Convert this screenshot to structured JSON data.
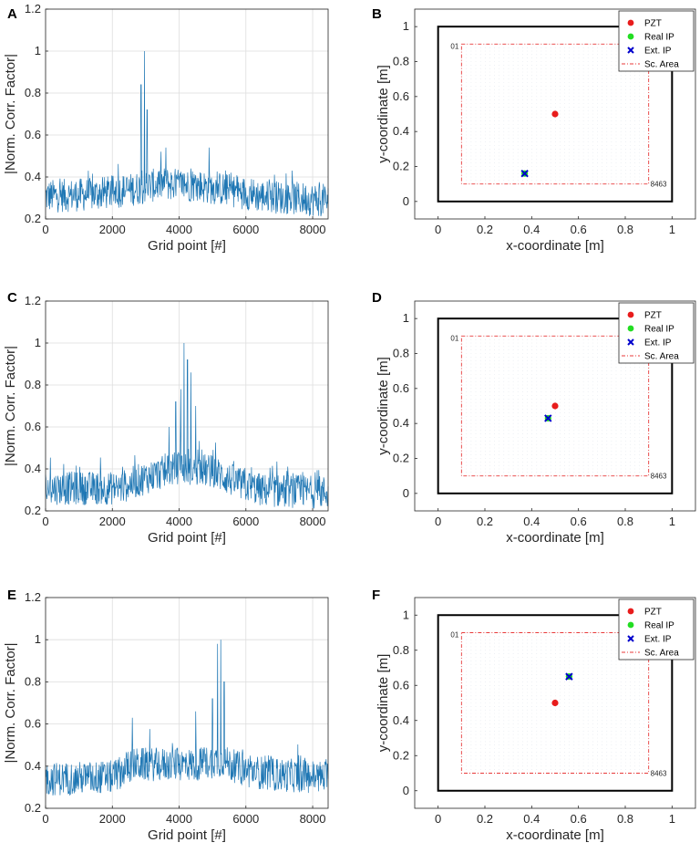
{
  "chart_data": [
    {
      "panel": "A",
      "type": "line",
      "xlabel": "Grid point [#]",
      "ylabel": "|Norm. Corr. Factor|",
      "xlim": [
        0,
        8463
      ],
      "ylim": [
        0.2,
        1.2
      ],
      "xticks": [
        0,
        2000,
        4000,
        6000,
        8000
      ],
      "xtick_labels": [
        "0",
        "2000",
        "4000",
        "6000",
        "8000"
      ],
      "yticks": [
        0.2,
        0.4,
        0.6,
        0.8,
        1,
        1.2
      ],
      "ytick_labels": [
        "0.2",
        "0.4",
        "0.6",
        "0.8",
        "1",
        "1.2"
      ],
      "grid": true,
      "color": "#1f77b4",
      "profile": [
        [
          0,
          0.3
        ],
        [
          1500,
          0.31
        ],
        [
          2500,
          0.33
        ],
        [
          3500,
          0.36
        ],
        [
          4500,
          0.35
        ],
        [
          5500,
          0.33
        ],
        [
          6500,
          0.3
        ],
        [
          8463,
          0.28
        ]
      ],
      "peaks": [
        [
          2860,
          0.84
        ],
        [
          2960,
          1.0
        ],
        [
          3040,
          0.72
        ],
        [
          3600,
          0.54
        ],
        [
          4900,
          0.54
        ]
      ]
    },
    {
      "panel": "B",
      "type": "scatter",
      "xlabel": "x-coordinate [m]",
      "ylabel": "y-coordinate [m]",
      "xlim": [
        -0.1,
        1.1
      ],
      "ylim": [
        -0.1,
        1.1
      ],
      "xticks": [
        0,
        0.2,
        0.4,
        0.6,
        0.8,
        1
      ],
      "xtick_labels": [
        "0",
        "0.2",
        "0.4",
        "0.6",
        "0.8",
        "1"
      ],
      "yticks": [
        0,
        0.2,
        0.4,
        0.6,
        0.8,
        1
      ],
      "ytick_labels": [
        "0",
        "0.2",
        "0.4",
        "0.6",
        "0.8",
        "1"
      ],
      "plate": [
        0,
        1,
        0,
        1
      ],
      "scan_area": [
        0.1,
        0.9,
        0.1,
        0.9
      ],
      "corner_labels": [
        "01",
        "8463"
      ],
      "pzt": [
        0.5,
        0.5
      ],
      "real_ip": [
        0.37,
        0.16
      ],
      "ext_ip": [
        0.37,
        0.16
      ],
      "legend": [
        "PZT",
        "Real IP",
        "Ext. IP",
        "Sc. Area"
      ],
      "legend_location": "top-right"
    },
    {
      "panel": "C",
      "type": "line",
      "xlabel": "Grid point [#]",
      "ylabel": "|Norm. Corr. Factor|",
      "xlim": [
        0,
        8463
      ],
      "ylim": [
        0.2,
        1.2
      ],
      "xticks": [
        0,
        2000,
        4000,
        6000,
        8000
      ],
      "xtick_labels": [
        "0",
        "2000",
        "4000",
        "6000",
        "8000"
      ],
      "yticks": [
        0.2,
        0.4,
        0.6,
        0.8,
        1,
        1.2
      ],
      "ytick_labels": [
        "0.2",
        "0.4",
        "0.6",
        "0.8",
        "1",
        "1.2"
      ],
      "grid": true,
      "color": "#1f77b4",
      "profile": [
        [
          0,
          0.3
        ],
        [
          2200,
          0.3
        ],
        [
          3000,
          0.35
        ],
        [
          4000,
          0.4
        ],
        [
          5000,
          0.38
        ],
        [
          5800,
          0.32
        ],
        [
          6500,
          0.29
        ],
        [
          8463,
          0.28
        ]
      ],
      "peaks": [
        [
          3900,
          0.72
        ],
        [
          4050,
          0.78
        ],
        [
          4150,
          1.0
        ],
        [
          4250,
          0.92
        ],
        [
          4350,
          0.86
        ],
        [
          4500,
          0.7
        ],
        [
          3700,
          0.6
        ]
      ]
    },
    {
      "panel": "D",
      "type": "scatter",
      "xlabel": "x-coordinate [m]",
      "ylabel": "y-coordinate [m]",
      "xlim": [
        -0.1,
        1.1
      ],
      "ylim": [
        -0.1,
        1.1
      ],
      "xticks": [
        0,
        0.2,
        0.4,
        0.6,
        0.8,
        1
      ],
      "xtick_labels": [
        "0",
        "0.2",
        "0.4",
        "0.6",
        "0.8",
        "1"
      ],
      "yticks": [
        0,
        0.2,
        0.4,
        0.6,
        0.8,
        1
      ],
      "ytick_labels": [
        "0",
        "0.2",
        "0.4",
        "0.6",
        "0.8",
        "1"
      ],
      "plate": [
        0,
        1,
        0,
        1
      ],
      "scan_area": [
        0.1,
        0.9,
        0.1,
        0.9
      ],
      "corner_labels": [
        "01",
        "8463"
      ],
      "pzt": [
        0.5,
        0.5
      ],
      "real_ip": [
        0.47,
        0.43
      ],
      "ext_ip": [
        0.47,
        0.43
      ],
      "legend": [
        "PZT",
        "Real IP",
        "Ext. IP",
        "Sc. Area"
      ],
      "legend_location": "top-right"
    },
    {
      "panel": "E",
      "type": "line",
      "xlabel": "Grid point [#]",
      "ylabel": "|Norm. Corr. Factor|",
      "xlim": [
        0,
        8463
      ],
      "ylim": [
        0.2,
        1.2
      ],
      "xticks": [
        0,
        2000,
        4000,
        6000,
        8000
      ],
      "xtick_labels": [
        "0",
        "2000",
        "4000",
        "6000",
        "8000"
      ],
      "yticks": [
        0.2,
        0.4,
        0.6,
        0.8,
        1,
        1.2
      ],
      "ytick_labels": [
        "0.2",
        "0.4",
        "0.6",
        "0.8",
        "1",
        "1.2"
      ],
      "grid": true,
      "color": "#1f77b4",
      "profile": [
        [
          0,
          0.33
        ],
        [
          2000,
          0.34
        ],
        [
          2600,
          0.4
        ],
        [
          3500,
          0.4
        ],
        [
          4500,
          0.4
        ],
        [
          5200,
          0.42
        ],
        [
          6000,
          0.37
        ],
        [
          7000,
          0.35
        ],
        [
          8463,
          0.34
        ]
      ],
      "peaks": [
        [
          2600,
          0.63
        ],
        [
          4500,
          0.66
        ],
        [
          5000,
          0.72
        ],
        [
          5150,
          0.98
        ],
        [
          5250,
          1.0
        ],
        [
          5350,
          0.8
        ]
      ]
    },
    {
      "panel": "F",
      "type": "scatter",
      "xlabel": "x-coordinate [m]",
      "ylabel": "y-coordinate [m]",
      "xlim": [
        -0.1,
        1.1
      ],
      "ylim": [
        -0.1,
        1.1
      ],
      "xticks": [
        0,
        0.2,
        0.4,
        0.6,
        0.8,
        1
      ],
      "xtick_labels": [
        "0",
        "0.2",
        "0.4",
        "0.6",
        "0.8",
        "1"
      ],
      "yticks": [
        0,
        0.2,
        0.4,
        0.6,
        0.8,
        1
      ],
      "ytick_labels": [
        "0",
        "0.2",
        "0.4",
        "0.6",
        "0.8",
        "1"
      ],
      "plate": [
        0,
        1,
        0,
        1
      ],
      "scan_area": [
        0.1,
        0.9,
        0.1,
        0.9
      ],
      "corner_labels": [
        "01",
        "8463"
      ],
      "pzt": [
        0.5,
        0.5
      ],
      "real_ip": [
        0.56,
        0.65
      ],
      "ext_ip": [
        0.56,
        0.65
      ],
      "legend": [
        "PZT",
        "Real IP",
        "Ext. IP",
        "Sc. Area"
      ],
      "legend_location": "top-right"
    }
  ],
  "colors": {
    "line": "#1f77b4",
    "pzt": "#e81c1c",
    "real_ip": "#22dd22",
    "ext_ip": "#0000cc",
    "scan_area": "#e83a3a",
    "grid": "#dedede"
  }
}
